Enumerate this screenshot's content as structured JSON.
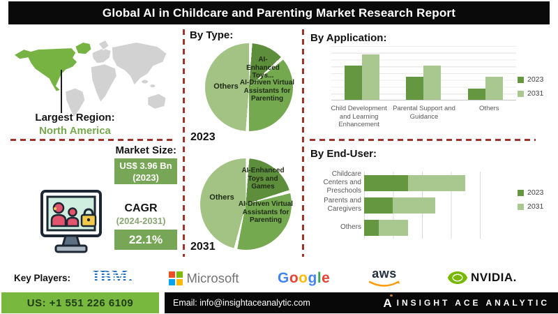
{
  "title": "Global AI in Childcare and Parenting Market Research Report",
  "region": {
    "label": "Largest Region:",
    "value": "North America"
  },
  "market_size": {
    "label": "Market Size:",
    "value": "US$ 3.96 Bn",
    "year": "(2023)"
  },
  "cagr": {
    "label": "CAGR",
    "period": "(2024-2031)",
    "value": "22.1%"
  },
  "sections": {
    "by_type": "By Type:",
    "by_application": "By Application:",
    "by_end_user": "By End-User:"
  },
  "colors": {
    "accent_green": "#79b83e",
    "box_green": "#77a656",
    "map_region_green": "#77b342",
    "map_gray": "#d2d2d2",
    "dash_red": "#a2332a",
    "series_2023": "#64973f",
    "series_2031": "#a9c88f"
  },
  "chart_data": [
    {
      "type": "pie",
      "year": "2023",
      "slices": [
        {
          "label": "AI-Enhanced Toys...",
          "value": 13,
          "color": "#5c8e3c"
        },
        {
          "label": "AI-Driven Virtual Assistants for Parenting",
          "value": 37,
          "color": "#74a950"
        },
        {
          "label": "Others",
          "value": 50,
          "color": "#a3c384"
        }
      ]
    },
    {
      "type": "pie",
      "year": "2031",
      "slices": [
        {
          "label": "AI-Enhanced Toys and Games",
          "value": 20,
          "color": "#5c8e3c"
        },
        {
          "label": "AI-Driven Virtual Assistants for Parenting",
          "value": 33,
          "color": "#74a950"
        },
        {
          "label": "Others",
          "value": 47,
          "color": "#a3c384"
        }
      ]
    },
    {
      "type": "bar",
      "title": "By Application:",
      "categories": [
        "Child Development and Learning Enhancement",
        "Parental Support and Guidance",
        "Others"
      ],
      "series": [
        {
          "name": "2023",
          "color": "#64973f",
          "values": [
            63,
            43,
            21
          ]
        },
        {
          "name": "2031",
          "color": "#a9c88f",
          "values": [
            84,
            63,
            43
          ]
        }
      ],
      "ylim": [
        0,
        100
      ],
      "grid": "horizontal",
      "legend_position": "right"
    },
    {
      "type": "stacked-bar-horizontal",
      "title": "By End-User:",
      "categories": [
        "Childcare Centers and Preschools",
        "Parents and Caregivers",
        "Others"
      ],
      "series": [
        {
          "name": "2023",
          "color": "#64973f",
          "values": [
            38,
            25,
            13
          ]
        },
        {
          "name": "2031",
          "color": "#a9c88f",
          "values": [
            50,
            37,
            25
          ]
        }
      ],
      "xlim": [
        0,
        100
      ],
      "grid": "vertical",
      "legend_position": "right"
    }
  ],
  "key_players": {
    "label": "Key Players:",
    "ibm": "IBM.",
    "microsoft": "Microsoft",
    "google_letters": [
      "G",
      "o",
      "o",
      "g",
      "l",
      "e"
    ],
    "aws": "aws",
    "nvidia": "NVIDIA."
  },
  "footer": {
    "phone": "US: +1 551 226 6109",
    "email": "Email: info@insightaceanalytic.com",
    "brand_mark": "A",
    "brand": "INSIGHT ACE ANALYTIC"
  }
}
